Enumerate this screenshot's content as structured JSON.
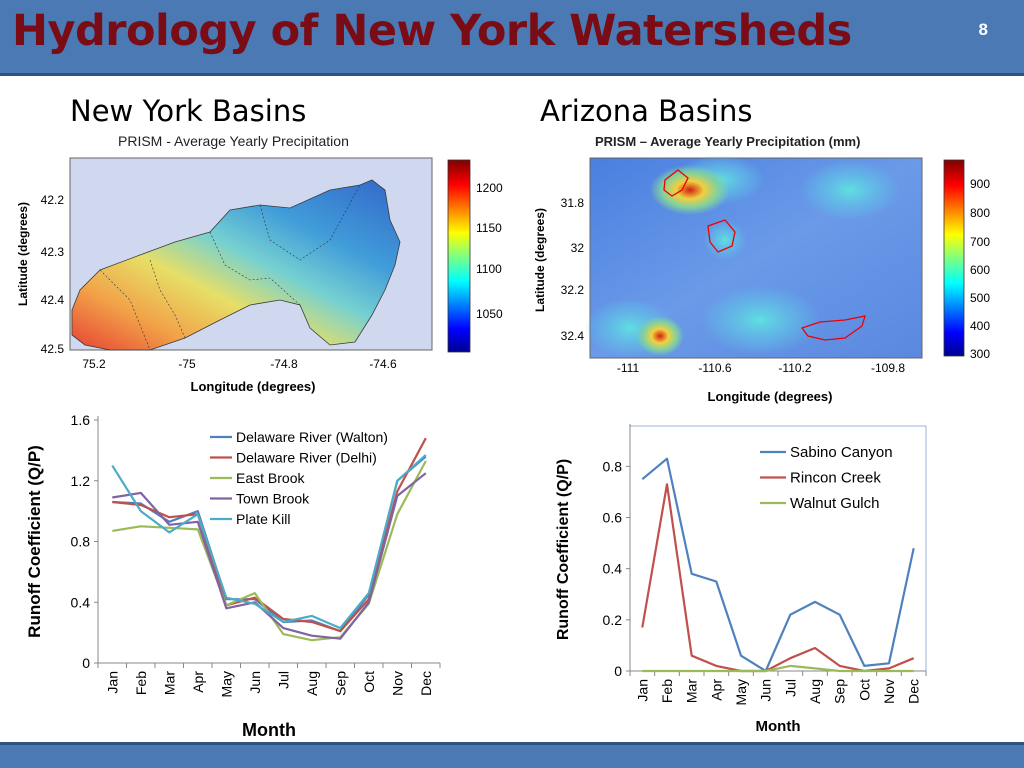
{
  "slide": {
    "title": "Hydrology of New York Watersheds",
    "number": "8"
  },
  "colors": {
    "header": "#4a79b4",
    "title": "#7a0c16",
    "ny_walton": "#4f81bd",
    "ny_delhi": "#c0504d",
    "ny_east_brook": "#9bbb59",
    "ny_town_brook": "#8064a2",
    "ny_plate_kill": "#4bacc6",
    "az_sabino": "#4f81bd",
    "az_rincon": "#c0504d",
    "az_walnut": "#9bbb59"
  },
  "ny_section": {
    "heading": "New York Basins",
    "map_title": "PRISM - Average Yearly Precipitation",
    "colorbar_ticks": [
      "1200",
      "1150",
      "1100",
      "1050"
    ],
    "lat_ticks": [
      "42.2",
      "42.3",
      "42.4",
      "42.5"
    ],
    "lon_ticks": [
      "75.2",
      "-75",
      "-74.8",
      "-74.6"
    ],
    "ylabel": "Latitude (degrees)",
    "xlabel": "Longitude (degrees)"
  },
  "az_section": {
    "heading": "Arizona Basins",
    "map_title": "PRISM – Average Yearly Precipitation (mm)",
    "colorbar_ticks": [
      "900",
      "800",
      "700",
      "600",
      "500",
      "400",
      "300"
    ],
    "lat_ticks": [
      "31.8",
      "32",
      "32.2",
      "32.4"
    ],
    "lon_ticks": [
      "-111",
      "-110.6",
      "-110.2",
      "-109.8"
    ],
    "ylabel": "Latitude (degrees)",
    "xlabel": "Longitude (degrees)"
  },
  "chart_data": [
    {
      "type": "line",
      "title": "",
      "xlabel": "Month",
      "ylabel": "Runoff Coefficient (Q/P)",
      "categories": [
        "Jan",
        "Feb",
        "Mar",
        "Apr",
        "May",
        "Jun",
        "Jul",
        "Aug",
        "Sep",
        "Oct",
        "Nov",
        "Dec"
      ],
      "ylim": [
        0,
        1.6
      ],
      "yticks": [
        "0",
        "0.4",
        "0.8",
        "1.2",
        "1.6"
      ],
      "ytick_values": [
        0,
        0.4,
        0.8,
        1.2,
        1.6
      ],
      "grid": false,
      "legend": "top-right",
      "series": [
        {
          "name": "Delaware River (Walton)",
          "values": [
            1.06,
            1.05,
            0.93,
            1.0,
            0.42,
            0.42,
            0.27,
            0.28,
            0.21,
            0.45,
            1.2,
            1.36
          ]
        },
        {
          "name": "Delaware River (Delhi)",
          "values": [
            1.06,
            1.04,
            0.96,
            0.98,
            0.38,
            0.43,
            0.29,
            0.27,
            0.21,
            0.42,
            1.13,
            1.48
          ]
        },
        {
          "name": "East Brook",
          "values": [
            0.87,
            0.9,
            0.89,
            0.88,
            0.38,
            0.46,
            0.19,
            0.15,
            0.17,
            0.39,
            0.98,
            1.33
          ]
        },
        {
          "name": "Town Brook",
          "values": [
            1.09,
            1.12,
            0.91,
            0.93,
            0.36,
            0.4,
            0.23,
            0.18,
            0.16,
            0.4,
            1.1,
            1.25
          ]
        },
        {
          "name": "Plate Kill",
          "values": [
            1.3,
            1.0,
            0.86,
            0.98,
            0.43,
            0.39,
            0.27,
            0.31,
            0.23,
            0.46,
            1.2,
            1.37
          ]
        }
      ]
    },
    {
      "type": "line",
      "title": "",
      "xlabel": "Month",
      "ylabel": "Runoff Coefficient (Q/P)",
      "categories": [
        "Jan",
        "Feb",
        "Mar",
        "Apr",
        "May",
        "Jun",
        "Jul",
        "Aug",
        "Sep",
        "Oct",
        "Nov",
        "Dec"
      ],
      "ylim": [
        0,
        0.95
      ],
      "yticks": [
        "0",
        "0.2",
        "0.4",
        "0.6",
        "0.8"
      ],
      "ytick_values": [
        0,
        0.2,
        0.4,
        0.6,
        0.8
      ],
      "grid": false,
      "legend": "top-right",
      "series": [
        {
          "name": "Sabino Canyon",
          "values": [
            0.75,
            0.83,
            0.38,
            0.35,
            0.06,
            0.0,
            0.22,
            0.27,
            0.22,
            0.02,
            0.03,
            0.48
          ]
        },
        {
          "name": "Rincon Creek",
          "values": [
            0.17,
            0.73,
            0.06,
            0.02,
            0.0,
            0.0,
            0.05,
            0.09,
            0.02,
            0.0,
            0.01,
            0.05
          ]
        },
        {
          "name": "Walnut Gulch",
          "values": [
            0.0,
            0.0,
            0.0,
            0.0,
            0.0,
            0.0,
            0.02,
            0.01,
            0.0,
            0.0,
            0.0,
            0.0
          ]
        }
      ]
    }
  ]
}
